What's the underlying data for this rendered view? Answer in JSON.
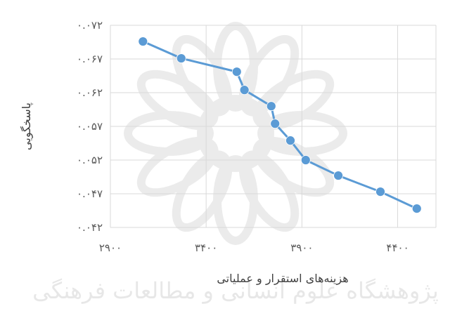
{
  "chart_data": {
    "type": "scatter",
    "xlabel": "هزینه‌های استقرار و عملیاتی",
    "ylabel": "پاسخگویی",
    "xlim": [
      2900,
      4600
    ],
    "ylim": [
      0.042,
      0.072
    ],
    "xticks": [
      2900,
      3400,
      3900,
      4400
    ],
    "yticks": [
      0.042,
      0.047,
      0.052,
      0.057,
      0.062,
      0.067,
      0.072
    ],
    "xtick_labels": [
      "۲۹۰۰",
      "۳۴۰۰",
      "۳۹۰۰",
      "۴۴۰۰"
    ],
    "ytick_labels": [
      "۰.۰۴۲",
      "۰.۰۴۷",
      "۰.۰۵۲",
      "۰.۰۵۷",
      "۰.۰۶۲",
      "۰.۰۶۷",
      "۰.۰۷۲"
    ],
    "grid": true,
    "series": [
      {
        "x": [
          3070,
          3270,
          3560,
          3600,
          3740,
          3760,
          3840,
          3920,
          4090,
          4310,
          4500
        ],
        "y": [
          0.0696,
          0.0671,
          0.0651,
          0.0624,
          0.06,
          0.0574,
          0.0549,
          0.052,
          0.0497,
          0.0473,
          0.0448
        ],
        "color": "#5b9bd5"
      }
    ]
  },
  "watermark_text": "پژوهشگاه علوم انسانی و مطالعات فرهنگی"
}
